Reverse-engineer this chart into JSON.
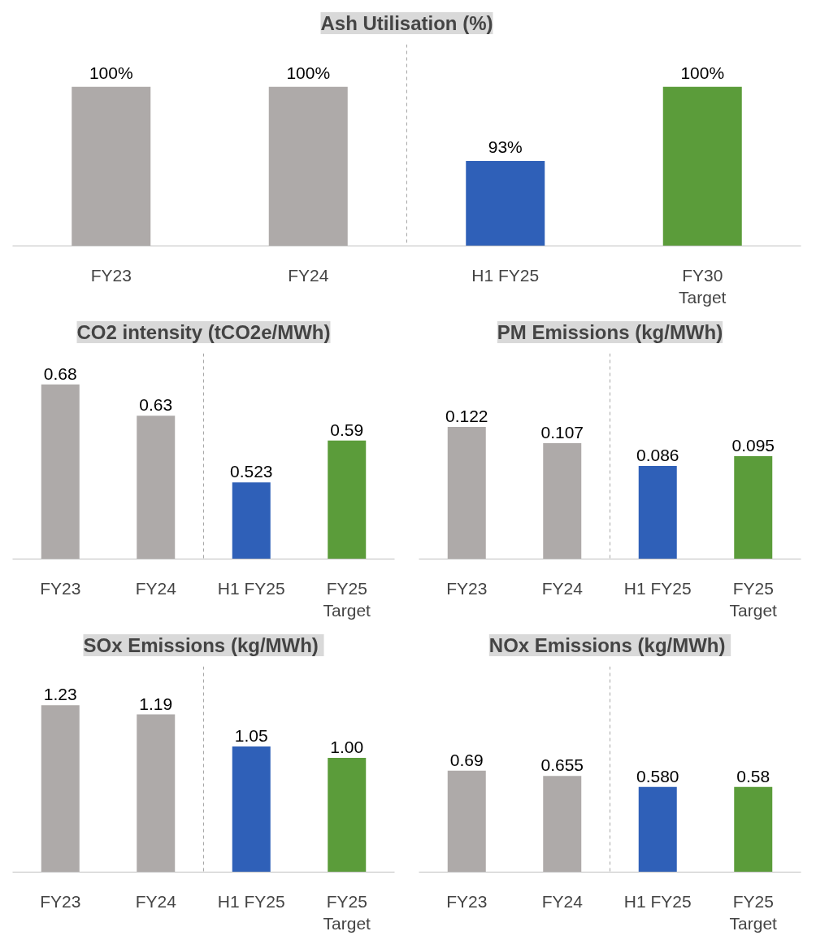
{
  "chart_data": [
    {
      "type": "bar",
      "title": "Ash Utilisation (%)",
      "categories": [
        "FY23",
        "FY24",
        "H1 FY25",
        "FY30\nTarget"
      ],
      "values": [
        100,
        100,
        93,
        100
      ],
      "colors": [
        "#aeaaa9",
        "#aeaaa9",
        "#2f60b8",
        "#5b9c3a"
      ],
      "value_labels": [
        "100%",
        "100%",
        "93%",
        "100%"
      ],
      "ylim": [
        85,
        104
      ],
      "grid": false
    },
    {
      "type": "bar",
      "title": "CO2 intensity (tCO2e/MWh)",
      "categories": [
        "FY23",
        "FY24",
        "H1 FY25",
        "FY25\nTarget"
      ],
      "values": [
        0.68,
        0.63,
        0.523,
        0.59
      ],
      "colors": [
        "#aeaaa9",
        "#aeaaa9",
        "#2f60b8",
        "#5b9c3a"
      ],
      "value_labels": [
        "0.68",
        "0.63",
        "0.523",
        "0.59"
      ],
      "ylim": [
        0.4,
        0.73
      ],
      "grid": false
    },
    {
      "type": "bar",
      "title": "PM Emissions (kg/MWh)",
      "categories": [
        "FY23",
        "FY24",
        "H1 FY25",
        "FY25\nTarget"
      ],
      "values": [
        0.122,
        0.107,
        0.086,
        0.095
      ],
      "colors": [
        "#aeaaa9",
        "#aeaaa9",
        "#2f60b8",
        "#5b9c3a"
      ],
      "value_labels": [
        "0.122",
        "0.107",
        "0.086",
        "0.095"
      ],
      "ylim": [
        0,
        0.19
      ],
      "grid": false
    },
    {
      "type": "bar",
      "title": "SOx  Emissions (kg/MWh)",
      "categories": [
        "FY23",
        "FY24",
        "H1 FY25",
        "FY25\nTarget"
      ],
      "values": [
        1.23,
        1.19,
        1.05,
        1.0
      ],
      "colors": [
        "#aeaaa9",
        "#aeaaa9",
        "#2f60b8",
        "#5b9c3a"
      ],
      "value_labels": [
        "1.23",
        "1.19",
        "1.05",
        "1.00"
      ],
      "ylim": [
        0.5,
        1.4
      ],
      "grid": false
    },
    {
      "type": "bar",
      "title": "NOx  Emissions (kg/MWh)",
      "categories": [
        "FY23",
        "FY24",
        "H1 FY25",
        "FY25\nTarget"
      ],
      "values": [
        0.69,
        0.655,
        0.58,
        0.58
      ],
      "colors": [
        "#aeaaa9",
        "#aeaaa9",
        "#2f60b8",
        "#5b9c3a"
      ],
      "value_labels": [
        "0.69",
        "0.655",
        "0.580",
        "0.58"
      ],
      "ylim": [
        0,
        1.4
      ],
      "grid": false
    }
  ]
}
